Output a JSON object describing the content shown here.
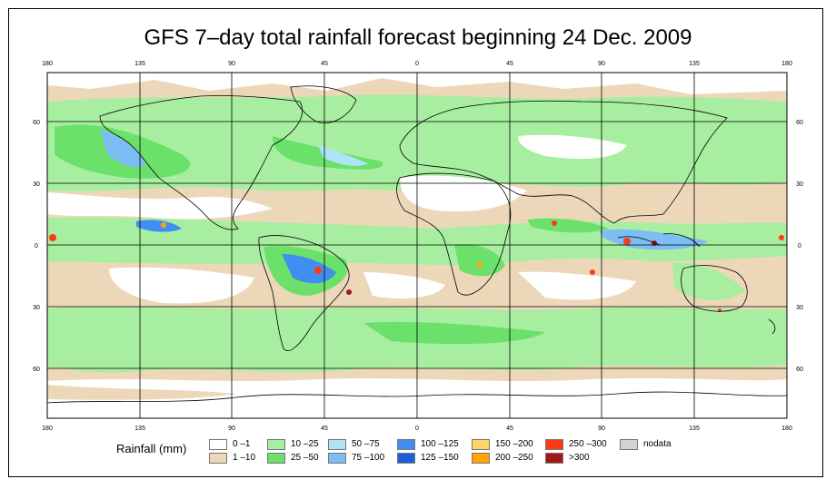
{
  "title": "GFS 7–day total rainfall forecast beginning 24 Dec. 2009",
  "map": {
    "lon_labels": [
      "180",
      "135",
      "90",
      "45",
      "0",
      "45",
      "90",
      "135",
      "180"
    ],
    "lat_labels": [
      "60",
      "30",
      "0",
      "30",
      "60"
    ],
    "colors": {
      "land_outline": "#000000",
      "c0_1": "#ffffff",
      "c1_10": "#ecd8b8",
      "c10_25": "#a8eea0",
      "c25_50": "#6be06b",
      "c50_75": "#aee4f6",
      "c75_100": "#7cbef4",
      "c100_125": "#3f8ef0",
      "c125_150": "#1f5fd6",
      "c150_200": "#ffd666",
      "c200_250": "#ffa500",
      "c250_300": "#ff3a10",
      "c300": "#a01818",
      "nodata": "#d4d4d4"
    }
  },
  "legend": {
    "title": "Rainfall (mm)",
    "items": [
      {
        "label": "0 –1",
        "color": "#ffffff"
      },
      {
        "label": "1 –10",
        "color": "#ecd8b8"
      },
      {
        "label": "10 –25",
        "color": "#a8eea0"
      },
      {
        "label": "25 –50",
        "color": "#6be06b"
      },
      {
        "label": "50 –75",
        "color": "#aee4f6"
      },
      {
        "label": "75 –100",
        "color": "#7cbef4"
      },
      {
        "label": "100 –125",
        "color": "#3f8ef0"
      },
      {
        "label": "125 –150",
        "color": "#1f5fd6"
      },
      {
        "label": "150 –200",
        "color": "#ffd666"
      },
      {
        "label": "200 –250",
        "color": "#ffa500"
      },
      {
        "label": "250 –300",
        "color": "#ff3a10"
      },
      {
        "label": ">300",
        "color": "#a01818"
      },
      {
        "label": "nodata",
        "color": "#d4d4d4"
      }
    ]
  }
}
